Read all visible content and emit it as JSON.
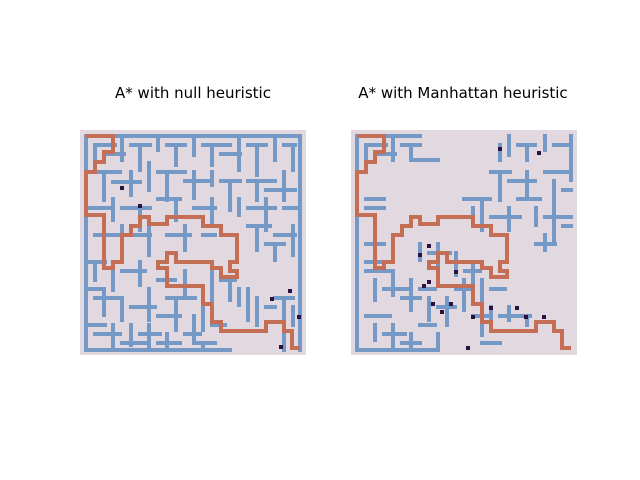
{
  "panels": [
    {
      "title": "A* with null heuristic"
    },
    {
      "title": "A* with Manhattan heuristic"
    }
  ],
  "colors": {
    "background": "#e2d8e0",
    "wall": "#7499c7",
    "path": "#c56e56",
    "visited": "#2a1240"
  }
}
